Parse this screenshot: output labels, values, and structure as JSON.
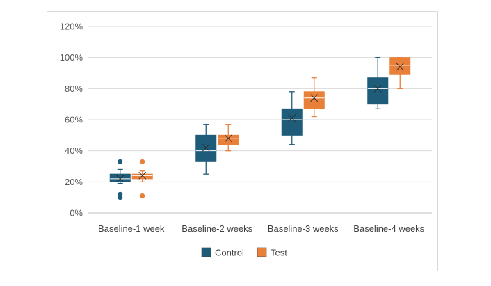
{
  "chart_data": {
    "type": "box",
    "categories": [
      "Baseline-1 week",
      "Baseline-2 weeks",
      "Baseline-3 weeks",
      "Baseline-4 weeks"
    ],
    "y_ticks": [
      "0%",
      "20%",
      "40%",
      "60%",
      "80%",
      "100%",
      "120%"
    ],
    "ylim": [
      0,
      120
    ],
    "grid": true,
    "legend_position": "bottom",
    "series": [
      {
        "name": "Control",
        "color": "#1f5c7a",
        "boxes": [
          {
            "min": 19,
            "q1": 20,
            "median": 22,
            "q3": 25,
            "max": 28,
            "mean": 22,
            "outliers": [
              33,
              12,
              10
            ]
          },
          {
            "min": 25,
            "q1": 33,
            "median": 40,
            "q3": 50,
            "max": 57,
            "mean": 42,
            "outliers": []
          },
          {
            "min": 44,
            "q1": 50,
            "median": 60,
            "q3": 67,
            "max": 78,
            "mean": 61,
            "outliers": []
          },
          {
            "min": 67,
            "q1": 70,
            "median": 80,
            "q3": 87,
            "max": 100,
            "mean": 80,
            "outliers": []
          }
        ]
      },
      {
        "name": "Test",
        "color": "#e8803a",
        "boxes": [
          {
            "min": 20,
            "q1": 22,
            "median": 24,
            "q3": 25,
            "max": 27,
            "mean": 24,
            "outliers": [
              33,
              11
            ]
          },
          {
            "min": 40,
            "q1": 44,
            "median": 48,
            "q3": 50,
            "max": 57,
            "mean": 48,
            "outliers": []
          },
          {
            "min": 62,
            "q1": 67,
            "median": 74,
            "q3": 78,
            "max": 87,
            "mean": 74,
            "outliers": []
          },
          {
            "min": 80,
            "q1": 89,
            "median": 95,
            "q3": 100,
            "max": 100,
            "mean": 94,
            "outliers": []
          }
        ]
      }
    ]
  }
}
